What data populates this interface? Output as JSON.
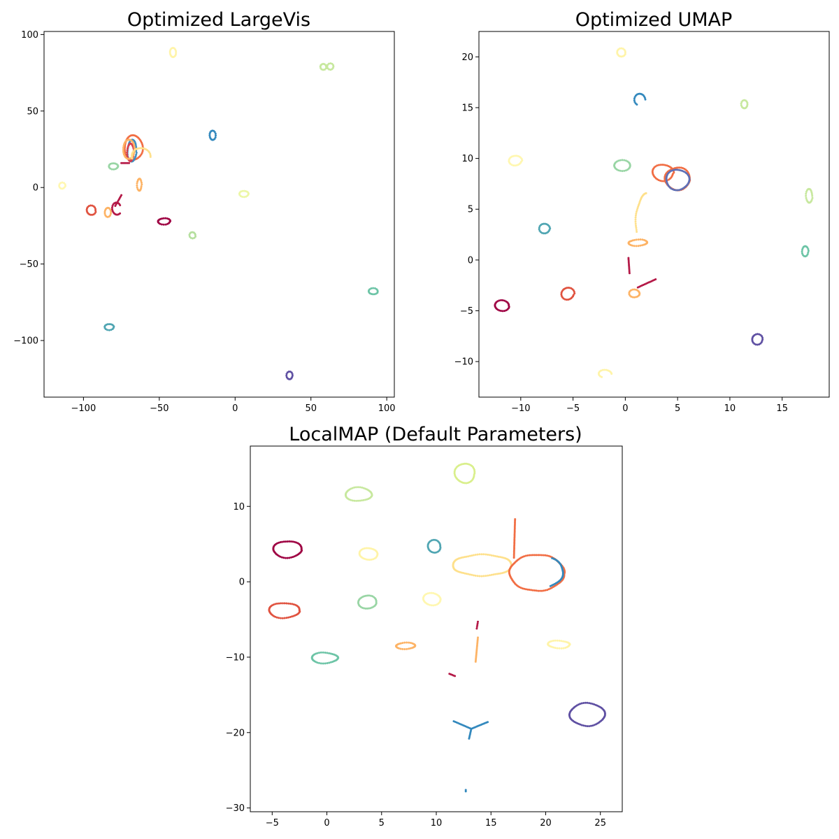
{
  "chart_data": [
    {
      "type": "scatter",
      "title": "Optimized LargeVis",
      "xlabel": "",
      "ylabel": "",
      "xlim": [
        -126,
        105
      ],
      "ylim": [
        -137,
        102
      ],
      "xticks": [
        "−100",
        "−50",
        "0",
        "50",
        "100"
      ],
      "yticks": [
        "100",
        "50",
        "0",
        "−50",
        "−100"
      ],
      "xtick_values": [
        -100,
        -50,
        0,
        50,
        100
      ],
      "ytick_values": [
        100,
        50,
        0,
        -50,
        -100
      ],
      "grid": false,
      "clusters": [
        {
          "shape": "ring",
          "cx": -41,
          "cy": 88,
          "rx": 2,
          "ry": 3,
          "color": "#fff4a8"
        },
        {
          "shape": "ring",
          "cx": 58,
          "cy": 79,
          "rx": 2,
          "ry": 2,
          "color": "#c7e89e"
        },
        {
          "shape": "ring",
          "cx": 63,
          "cy": 79,
          "rx": 2,
          "ry": 2,
          "color": "#c7e89e"
        },
        {
          "shape": "ring",
          "cx": -67,
          "cy": 26,
          "rx": 6,
          "ry": 8,
          "color": "#f16d43"
        },
        {
          "shape": "ring",
          "cx": -68,
          "cy": 24,
          "rx": 3,
          "ry": 7,
          "color": "#3e8ebf"
        },
        {
          "shape": "ring",
          "cx": -69,
          "cy": 23,
          "rx": 2,
          "ry": 6,
          "color": "#d8404e"
        },
        {
          "shape": "ring",
          "cx": -70,
          "cy": 25,
          "rx": 4,
          "ry": 6,
          "color": "#fdb365"
        },
        {
          "shape": "arc",
          "cx": -62,
          "cy": 20,
          "rx": 6,
          "ry": 6,
          "start": 0,
          "end": 200,
          "color": "#fee08b"
        },
        {
          "shape": "ring",
          "cx": -80,
          "cy": 14,
          "rx": 3,
          "ry": 2,
          "color": "#98d5a4"
        },
        {
          "shape": "ring",
          "cx": -114,
          "cy": 1,
          "rx": 2,
          "ry": 2,
          "color": "#fff7b0"
        },
        {
          "shape": "ring",
          "cx": -63,
          "cy": 2,
          "rx": 1.5,
          "ry": 4,
          "color": "#fdb365"
        },
        {
          "shape": "ring",
          "cx": -95,
          "cy": -15,
          "rx": 3,
          "ry": 3,
          "color": "#e0523f"
        },
        {
          "shape": "ring",
          "cx": -84,
          "cy": -16,
          "rx": 2,
          "ry": 3,
          "color": "#fdb365"
        },
        {
          "shape": "arc",
          "cx": -78,
          "cy": -14,
          "rx": 3,
          "ry": 4,
          "start": 40,
          "end": 330,
          "color": "#b41947"
        },
        {
          "shape": "line",
          "x0": -79,
          "y0": -12,
          "x1": -75,
          "y1": -5,
          "color": "#b41947"
        },
        {
          "shape": "line",
          "x0": -75,
          "y0": 16,
          "x1": -70,
          "y1": 16,
          "color": "#b41947"
        },
        {
          "shape": "ring",
          "cx": -47,
          "cy": -22,
          "rx": 4,
          "ry": 2,
          "color": "#9e0142"
        },
        {
          "shape": "ring",
          "cx": -28,
          "cy": -31,
          "rx": 2,
          "ry": 2,
          "color": "#b5df9e"
        },
        {
          "shape": "ring",
          "cx": -15,
          "cy": 34,
          "rx": 2,
          "ry": 3,
          "color": "#3288bd"
        },
        {
          "shape": "ring",
          "cx": 6,
          "cy": -4,
          "rx": 3,
          "ry": 2,
          "color": "#ecf7a6"
        },
        {
          "shape": "ring",
          "cx": 91,
          "cy": -68,
          "rx": 3,
          "ry": 2,
          "color": "#6cc4a6"
        },
        {
          "shape": "ring",
          "cx": -83,
          "cy": -91,
          "rx": 3,
          "ry": 2,
          "color": "#4fa5b2"
        },
        {
          "shape": "ring",
          "cx": 36,
          "cy": -123,
          "rx": 2,
          "ry": 2.5,
          "color": "#5e4fa2"
        }
      ]
    },
    {
      "type": "scatter",
      "title": "Optimized UMAP",
      "xlabel": "",
      "ylabel": "",
      "xlim": [
        -14,
        19.5
      ],
      "ylim": [
        -13.5,
        22.5
      ],
      "xticks": [
        "−10",
        "−5",
        "0",
        "5",
        "10",
        "15"
      ],
      "yticks": [
        "20",
        "15",
        "10",
        "5",
        "0",
        "−5",
        "−10"
      ],
      "xtick_values": [
        -10,
        -5,
        0,
        5,
        10,
        15
      ],
      "ytick_values": [
        20,
        15,
        10,
        5,
        0,
        -5,
        -10
      ],
      "grid": false,
      "clusters": [
        {
          "shape": "ring",
          "cx": -0.4,
          "cy": 20.4,
          "rx": 0.4,
          "ry": 0.4,
          "color": "#fff4a8"
        },
        {
          "shape": "arc",
          "cx": 1.4,
          "cy": 15.8,
          "rx": 0.5,
          "ry": 0.6,
          "start": 0,
          "end": 250,
          "color": "#3288bd"
        },
        {
          "shape": "ring",
          "cx": 11.4,
          "cy": 15.3,
          "rx": 0.3,
          "ry": 0.4,
          "color": "#c7e89e"
        },
        {
          "shape": "ring",
          "cx": -10.5,
          "cy": 9.8,
          "rx": 0.6,
          "ry": 0.5,
          "color": "#fff7b0"
        },
        {
          "shape": "ring",
          "cx": -0.3,
          "cy": 9.3,
          "rx": 0.8,
          "ry": 0.5,
          "color": "#98d5a4"
        },
        {
          "shape": "ring",
          "cx": 3.6,
          "cy": 8.6,
          "rx": 1.0,
          "ry": 0.8,
          "color": "#f16d43"
        },
        {
          "shape": "ring",
          "cx": 5.0,
          "cy": 8.0,
          "rx": 1.2,
          "ry": 1.1,
          "color": "#f16d43"
        },
        {
          "shape": "ring",
          "cx": 5.0,
          "cy": 7.9,
          "rx": 1.1,
          "ry": 1.0,
          "color": "#5e6fb5"
        },
        {
          "shape": "ring",
          "cx": 17.6,
          "cy": 6.3,
          "rx": 0.3,
          "ry": 0.7,
          "color": "#c7e89e"
        },
        {
          "shape": "arc",
          "cx": 2.2,
          "cy": 3.6,
          "rx": 1.2,
          "ry": 3.0,
          "start": 100,
          "end": 200,
          "color": "#fee08b"
        },
        {
          "shape": "ring",
          "cx": -7.7,
          "cy": 3.1,
          "rx": 0.5,
          "ry": 0.5,
          "color": "#4fa5b2"
        },
        {
          "shape": "ring",
          "cx": 1.2,
          "cy": 1.7,
          "rx": 0.9,
          "ry": 0.3,
          "color": "#fdb365"
        },
        {
          "shape": "ring",
          "cx": 17.2,
          "cy": 0.9,
          "rx": 0.3,
          "ry": 0.5,
          "color": "#6cc4a6"
        },
        {
          "shape": "line",
          "x0": 0.3,
          "y0": 0.2,
          "x1": 0.4,
          "y1": -1.3,
          "color": "#b41947"
        },
        {
          "shape": "line",
          "x0": 1.2,
          "y0": -2.7,
          "x1": 2.9,
          "y1": -1.9,
          "color": "#b41947"
        },
        {
          "shape": "ring",
          "cx": -11.8,
          "cy": -4.5,
          "rx": 0.7,
          "ry": 0.5,
          "color": "#9e0142"
        },
        {
          "shape": "ring",
          "cx": -5.5,
          "cy": -3.3,
          "rx": 0.6,
          "ry": 0.6,
          "color": "#e0523f"
        },
        {
          "shape": "ring",
          "cx": 0.9,
          "cy": -3.3,
          "rx": 0.5,
          "ry": 0.4,
          "color": "#fdb365"
        },
        {
          "shape": "ring",
          "cx": 12.6,
          "cy": -7.8,
          "rx": 0.5,
          "ry": 0.5,
          "color": "#5e4fa2"
        },
        {
          "shape": "arc",
          "cx": -1.9,
          "cy": -11.2,
          "rx": 0.6,
          "ry": 0.4,
          "start": 0,
          "end": 250,
          "color": "#fff4a8"
        }
      ]
    },
    {
      "type": "scatter",
      "title": "LocalMAP (Default Parameters)",
      "xlabel": "",
      "ylabel": "",
      "xlim": [
        -7,
        27
      ],
      "ylim": [
        -30.5,
        18
      ],
      "xticks": [
        "−5",
        "0",
        "5",
        "10",
        "15",
        "20",
        "25"
      ],
      "yticks": [
        "10",
        "0",
        "−10",
        "−20",
        "−30"
      ],
      "xtick_values": [
        -5,
        0,
        5,
        10,
        15,
        20,
        25
      ],
      "ytick_values": [
        10,
        0,
        -10,
        -20,
        -30
      ],
      "grid": false,
      "clusters": [
        {
          "shape": "ring",
          "cx": 12.6,
          "cy": 14.4,
          "rx": 0.9,
          "ry": 1.3,
          "color": "#d9ef8b"
        },
        {
          "shape": "ring",
          "cx": 2.9,
          "cy": 11.6,
          "rx": 1.2,
          "ry": 0.9,
          "color": "#c7e89e"
        },
        {
          "shape": "ring",
          "cx": -3.6,
          "cy": 4.3,
          "rx": 1.3,
          "ry": 1.1,
          "color": "#9e0142"
        },
        {
          "shape": "ring",
          "cx": 3.8,
          "cy": 3.7,
          "rx": 0.8,
          "ry": 0.8,
          "color": "#fff4a8"
        },
        {
          "shape": "ring",
          "cx": 9.8,
          "cy": 4.7,
          "rx": 0.6,
          "ry": 0.8,
          "color": "#4fa5b2"
        },
        {
          "shape": "line",
          "x0": 17.2,
          "y0": 8.3,
          "x1": 17.1,
          "y1": 3.2,
          "color": "#f16d43"
        },
        {
          "shape": "ring",
          "cx": 14.2,
          "cy": 2.2,
          "rx": 2.7,
          "ry": 1.4,
          "color": "#fee08b"
        },
        {
          "shape": "ring",
          "cx": 19.2,
          "cy": 1.2,
          "rx": 2.5,
          "ry": 2.4,
          "color": "#f16d43"
        },
        {
          "shape": "arc",
          "cx": 19.3,
          "cy": 1.3,
          "rx": 2.3,
          "ry": 2.2,
          "start": -60,
          "end": 60,
          "color": "#3288bd"
        },
        {
          "shape": "ring",
          "cx": 3.7,
          "cy": -2.7,
          "rx": 0.8,
          "ry": 0.9,
          "color": "#98d5a4"
        },
        {
          "shape": "ring",
          "cx": 9.6,
          "cy": -2.3,
          "rx": 0.8,
          "ry": 0.8,
          "color": "#fff7b0"
        },
        {
          "shape": "ring",
          "cx": -3.9,
          "cy": -3.8,
          "rx": 1.4,
          "ry": 1.0,
          "color": "#e0523f"
        },
        {
          "shape": "ring",
          "cx": 21.2,
          "cy": -8.3,
          "rx": 1.0,
          "ry": 0.5,
          "color": "#fff4a8"
        },
        {
          "shape": "ring",
          "cx": 7.2,
          "cy": -8.5,
          "rx": 0.9,
          "ry": 0.4,
          "color": "#fdb365"
        },
        {
          "shape": "ring",
          "cx": -0.2,
          "cy": -10.1,
          "rx": 1.2,
          "ry": 0.7,
          "color": "#6cc4a6"
        },
        {
          "shape": "line",
          "x0": 13.8,
          "y0": -5.3,
          "x1": 13.7,
          "y1": -6.2,
          "color": "#b41947"
        },
        {
          "shape": "line",
          "x0": 13.8,
          "y0": -7.4,
          "x1": 13.6,
          "y1": -10.6,
          "color": "#fdb365"
        },
        {
          "shape": "line",
          "x0": 11.2,
          "y0": -12.2,
          "x1": 11.7,
          "y1": -12.5,
          "color": "#b41947"
        },
        {
          "shape": "ring",
          "cx": 23.8,
          "cy": -17.6,
          "rx": 1.6,
          "ry": 1.5,
          "color": "#5e4fa2"
        },
        {
          "shape": "line",
          "x0": 11.6,
          "y0": -18.5,
          "x1": 13.2,
          "y1": -19.5,
          "color": "#3288bd"
        },
        {
          "shape": "line",
          "x0": 14.7,
          "y0": -18.6,
          "x1": 13.2,
          "y1": -19.5,
          "color": "#3288bd"
        },
        {
          "shape": "line",
          "x0": 13.2,
          "y0": -19.5,
          "x1": 13.0,
          "y1": -20.8,
          "color": "#3288bd"
        },
        {
          "shape": "dot",
          "cx": 12.7,
          "cy": -27.8,
          "color": "#3288bd"
        }
      ]
    }
  ]
}
